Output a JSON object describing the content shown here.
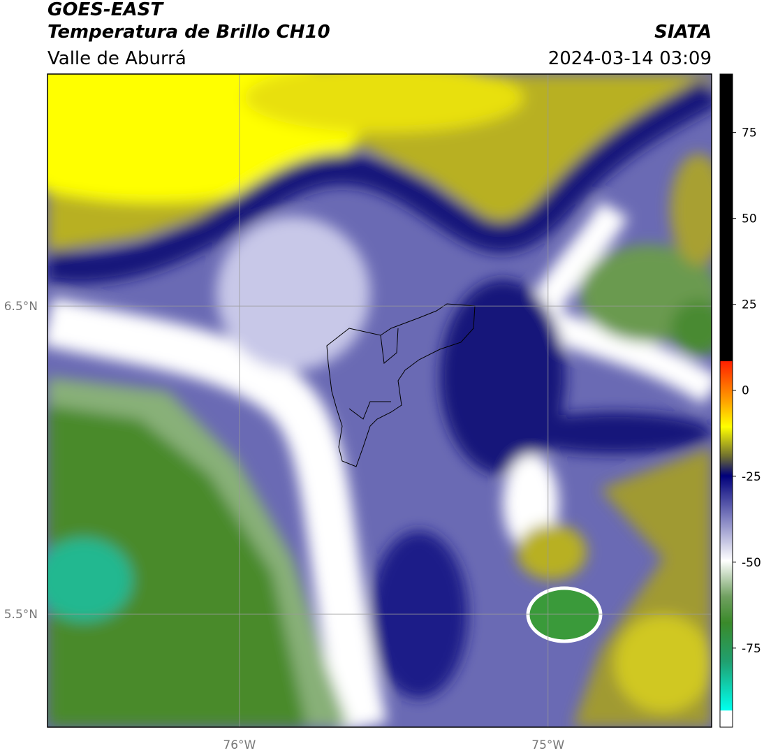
{
  "header": {
    "satellite": "GOES-EAST",
    "product": "Temperatura de Brillo CH10",
    "region": "Valle de Aburrá",
    "agency": "SIATA",
    "datetime": "2024-03-14 03:09"
  },
  "map": {
    "xlim": [
      -76.622,
      -74.47
    ],
    "ylim": [
      5.133,
      7.253
    ],
    "xticks": [
      {
        "value": -76,
        "label": "76°W"
      },
      {
        "value": -75,
        "label": "75°W"
      }
    ],
    "yticks": [
      {
        "value": 6.5,
        "label": "6.5°N"
      },
      {
        "value": 5.5,
        "label": "5.5°N"
      }
    ],
    "grid": true
  },
  "colorbar": {
    "lim": [
      -98,
      92
    ],
    "ticks": [
      75,
      50,
      25,
      0,
      -25,
      -50,
      -75
    ]
  }
}
